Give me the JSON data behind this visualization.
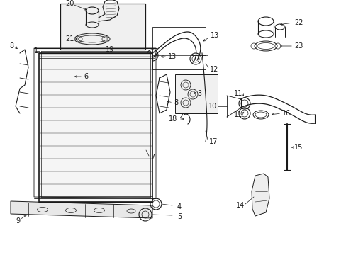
{
  "bg_color": "#ffffff",
  "line_color": "#1a1a1a",
  "fig_width": 4.89,
  "fig_height": 3.6,
  "dpi": 100,
  "label_fontsize": 7.0,
  "label_color": "#000000"
}
